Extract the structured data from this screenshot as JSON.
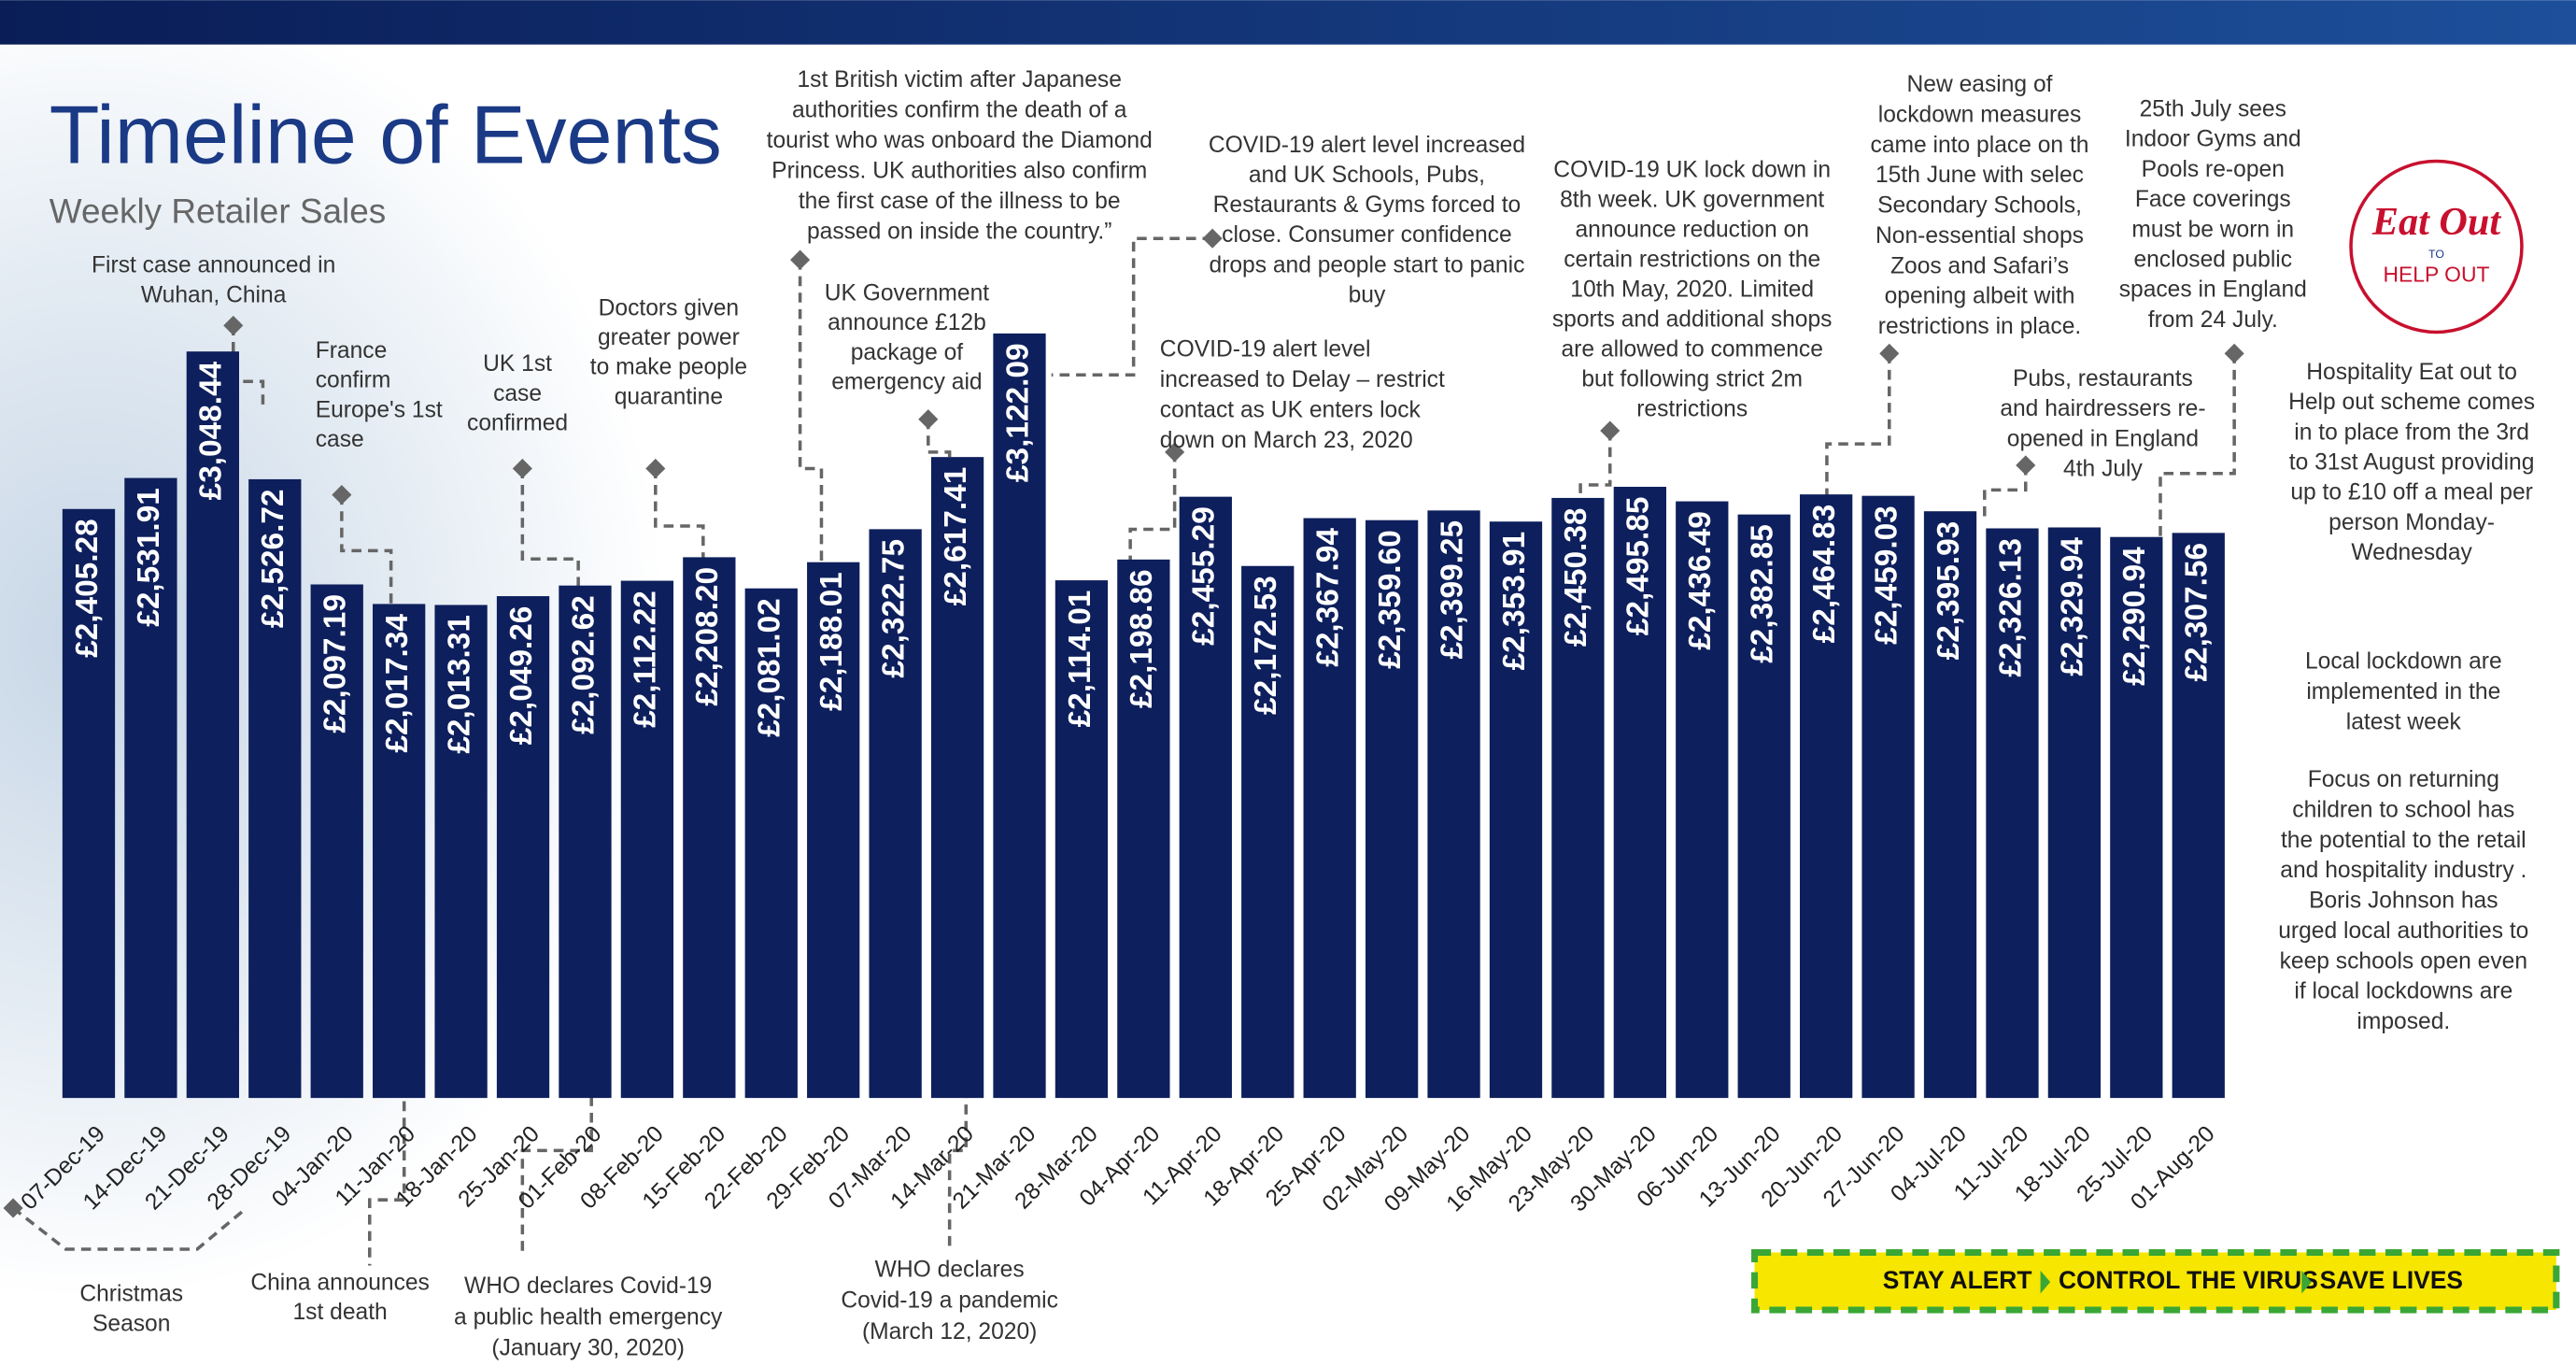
{
  "chart_data": {
    "type": "bar",
    "title": "Timeline of Events",
    "subtitle": "Weekly Retailer Sales",
    "color": "#0d1f5c",
    "ylim": [
      0,
      3500
    ],
    "categories": [
      "07-Dec-19",
      "14-Dec-19",
      "21-Dec-19",
      "28-Dec-19",
      "04-Jan-20",
      "11-Jan-20",
      "18-Jan-20",
      "25-Jan-20",
      "01-Feb-20",
      "08-Feb-20",
      "15-Feb-20",
      "22-Feb-20",
      "29-Feb-20",
      "07-Mar-20",
      "14-Mar-20",
      "21-Mar-20",
      "28-Mar-20",
      "04-Apr-20",
      "11-Apr-20",
      "18-Apr-20",
      "25-Apr-20",
      "02-May-20",
      "09-May-20",
      "16-May-20",
      "23-May-20",
      "30-May-20",
      "06-Jun-20",
      "13-Jun-20",
      "20-Jun-20",
      "27-Jun-20",
      "04-Jul-20",
      "11-Jul-20",
      "18-Jul-20",
      "25-Jul-20",
      "01-Aug-20"
    ],
    "values": [
      2405.28,
      2531.91,
      3048.44,
      2526.72,
      2097.19,
      2017.34,
      2013.31,
      2049.26,
      2092.62,
      2112.22,
      2208.2,
      2081.02,
      2188.01,
      2322.75,
      2617.41,
      3122.09,
      2114.01,
      2198.86,
      2455.29,
      2172.53,
      2367.94,
      2359.6,
      2399.25,
      2353.91,
      2450.38,
      2495.85,
      2436.49,
      2382.85,
      2464.83,
      2459.03,
      2395.93,
      2326.13,
      2329.94,
      2290.94,
      2307.56
    ],
    "value_labels": [
      "£2,405.28",
      "£2,531.91",
      "£3,048.44",
      "£2,526.72",
      "£2,097.19",
      "£2,017.34",
      "£2,013.31",
      "£2,049.26",
      "£2,092.62",
      "£2,112.22",
      "£2,208.20",
      "£2,081.02",
      "£2,188.01",
      "£2,322.75",
      "£2,617.41",
      "£3,122.09",
      "£2,114.01",
      "£2,198.86",
      "£2,455.29",
      "£2,172.53",
      "£2,367.94",
      "£2,359.60",
      "£2,399.25",
      "£2,353.91",
      "£2,450.38",
      "£2,495.85",
      "£2,436.49",
      "£2,382.85",
      "£2,464.83",
      "£2,459.03",
      "£2,395.93",
      "£2,326.13",
      "£2,329.94",
      "£2,290.94",
      "£2,307.56"
    ],
    "annotations": [
      {
        "lines": [
          "First case announced in",
          "Wuhan, China"
        ]
      },
      {
        "lines": [
          "France",
          "confirm",
          "Europe's 1st",
          "case"
        ]
      },
      {
        "lines": [
          "UK 1st",
          "case",
          "confirmed"
        ]
      },
      {
        "lines": [
          "Doctors given",
          "greater power",
          "to make people",
          "quarantine"
        ]
      },
      {
        "lines": [
          "1st British victim after Japanese",
          "authorities confirm the death of a",
          "tourist who was onboard the Diamond",
          "Princess. UK authorities also confirm",
          "the first case of the illness to be",
          "passed on inside the country.”"
        ]
      },
      {
        "lines": [
          "UK Government",
          "announce £12b",
          "package of",
          "emergency aid"
        ]
      },
      {
        "lines": [
          "COVID-19 alert level increased",
          "and UK Schools, Pubs,",
          "Restaurants & Gyms forced to",
          "close. Consumer confidence",
          "drops and people start to panic",
          "buy"
        ]
      },
      {
        "lines": [
          "COVID-19 alert level",
          "increased to Delay – restrict",
          "contact as UK enters lock",
          "down on March 23, 2020"
        ]
      },
      {
        "lines": [
          "COVID-19 UK lock down in",
          "8th week. UK government",
          "announce reduction on",
          "certain restrictions on the",
          "10th May, 2020. Limited",
          "sports and additional shops",
          "are allowed to commence",
          "but following strict 2m",
          "restrictions"
        ]
      },
      {
        "lines": [
          "New easing of",
          "lockdown measures",
          "came into place on th",
          "15th June with selec",
          "Secondary Schools,",
          "Non-essential shops",
          "Zoos and Safari’s",
          "opening albeit with",
          "restrictions in place."
        ]
      },
      {
        "lines": [
          "25th July sees",
          "Indoor Gyms and",
          "Pools re-open",
          "Face coverings",
          "must be worn in",
          "enclosed public",
          "spaces in England",
          "from 24 July."
        ]
      },
      {
        "lines": [
          "Pubs, restaurants",
          "and hairdressers re-",
          "opened in England",
          "4th July"
        ]
      },
      {
        "lines": [
          "Hospitality Eat out to",
          "Help out scheme comes",
          "in to place from the 3rd",
          "to 31st August providing",
          "up to £10 off a meal per",
          "person Monday-",
          "Wednesday"
        ]
      },
      {
        "lines": [
          "Local lockdown are",
          "implemented in the",
          "latest week"
        ]
      },
      {
        "lines": [
          "Focus on returning",
          "children to school has",
          "the potential to the retail",
          "and hospitality industry .",
          "Boris Johnson has",
          "urged local authorities to",
          "keep schools open even",
          "if local lockdowns are",
          "imposed."
        ]
      },
      {
        "lines": [
          "Christmas",
          "Season"
        ]
      },
      {
        "lines": [
          "China announces",
          "1st death"
        ]
      },
      {
        "lines": [
          "WHO declares  Covid-19",
          "a public health emergency",
          "(January 30, 2020)"
        ]
      },
      {
        "lines": [
          "WHO declares",
          "Covid-19 a pandemic",
          "(March 12, 2020)"
        ]
      }
    ],
    "logo": {
      "top": "Eat Out",
      "middle": "TO",
      "bottom": "HELP OUT"
    },
    "banner": [
      "STAY ALERT",
      "CONTROL THE VIRUS",
      "SAVE LIVES"
    ]
  }
}
